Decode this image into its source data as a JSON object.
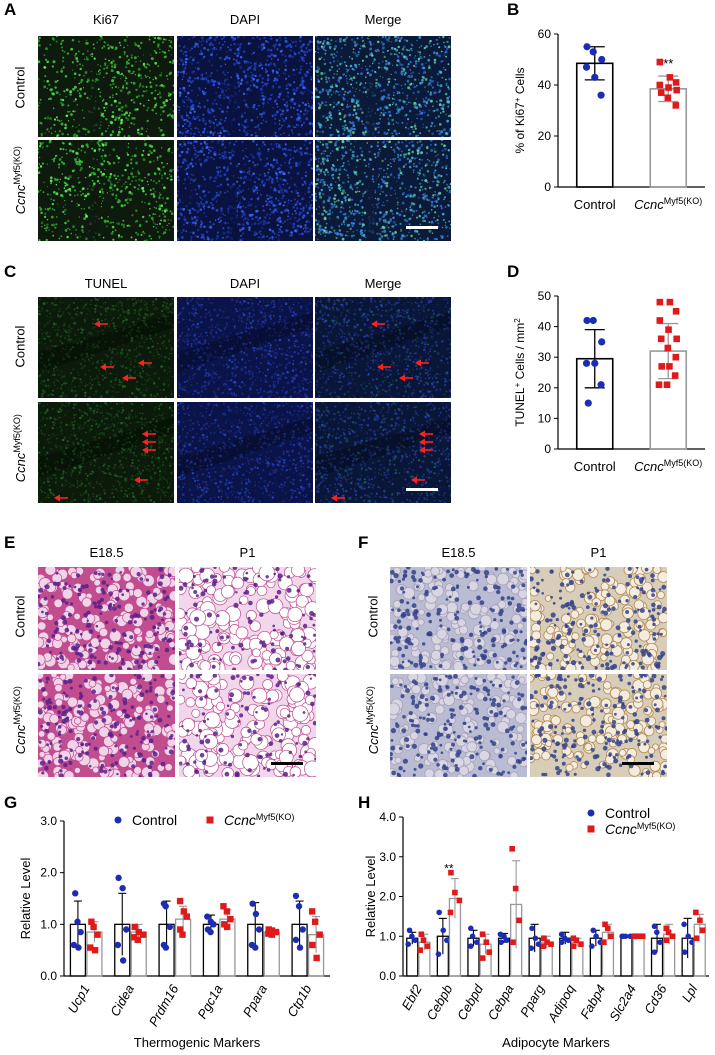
{
  "panels": {
    "A": {
      "label": "A",
      "columns": [
        "Ki67",
        "DAPI",
        "Merge"
      ],
      "rows": [
        "Control",
        "Ccnc"
      ],
      "row_sup": "Myf5(KO)"
    },
    "C": {
      "label": "C",
      "columns": [
        "TUNEL",
        "DAPI",
        "Merge"
      ],
      "rows": [
        "Control",
        "Ccnc"
      ],
      "row_sup": "Myf5(KO)"
    },
    "E": {
      "label": "E",
      "columns": [
        "E18.5",
        "P1"
      ],
      "rows": [
        "Control",
        "Ccnc"
      ],
      "row_sup": "Myf5(KO)"
    },
    "F": {
      "label": "F",
      "columns": [
        "E18.5",
        "P1"
      ],
      "rows": [
        "Control",
        "Ccnc"
      ],
      "row_sup": "Myf5(KO)"
    }
  },
  "colors": {
    "control": "#1c2db5",
    "ko": "#e01a1a",
    "ki67": "#39c437",
    "dapi": "#1a3cc8",
    "he": "#d24a9a",
    "ihc": "#c9a66b"
  },
  "chart_data": [
    {
      "id": "B",
      "label": "B",
      "type": "bar",
      "ylabel": "% of Ki67+ Cells",
      "ylabel_main": "% of Ki67",
      "ylabel_sup": "+",
      "ylabel_tail": " Cells",
      "ylim": [
        0,
        60
      ],
      "yticks": [
        0,
        20,
        40,
        60
      ],
      "categories": [
        "Control",
        "Ccnc"
      ],
      "category_sup": [
        "",
        "Myf5(KO)"
      ],
      "values": [
        48.5,
        38.5
      ],
      "errors": [
        6.5,
        5
      ],
      "points": [
        [
          55,
          53,
          50,
          47,
          43,
          36
        ],
        [
          49,
          43,
          41,
          40,
          39,
          38,
          37,
          35,
          32
        ]
      ],
      "annotations": [
        {
          "category": 1,
          "text": "**"
        }
      ]
    },
    {
      "id": "D",
      "label": "D",
      "type": "bar",
      "ylabel": "TUNEL+ Cells / mm2",
      "ylabel_main": "TUNEL",
      "ylabel_sup": "+",
      "ylabel_tail": " Cells / mm",
      "ylabel_tail_sup": "2",
      "ylim": [
        0,
        50
      ],
      "yticks": [
        0,
        10,
        20,
        30,
        40,
        50
      ],
      "categories": [
        "Control",
        "Ccnc"
      ],
      "category_sup": [
        "",
        "Myf5(KO)"
      ],
      "values": [
        29.5,
        32
      ],
      "errors": [
        9.5,
        9
      ],
      "points": [
        [
          42,
          42,
          35,
          28,
          28,
          21,
          15
        ],
        [
          48,
          48,
          45,
          42,
          39,
          36,
          36,
          33,
          30,
          27,
          27,
          24,
          21,
          21
        ]
      ],
      "annotations": []
    },
    {
      "id": "G",
      "label": "G",
      "type": "bar",
      "legend": [
        "Control",
        "Ccnc"
      ],
      "legend_sup": "Myf5(KO)",
      "ylabel": "Relative Level",
      "xlabel": "Thermogenic Markers",
      "ylim": [
        0,
        3
      ],
      "yticks": [
        0.0,
        1.0,
        2.0,
        3.0
      ],
      "ytick_labels": [
        "0.0",
        "1.0",
        "2.0",
        "3.0"
      ],
      "categories": [
        "Ucp1",
        "Cidea",
        "Prdm16",
        "Pgc1a",
        "Ppara",
        "Ctp1b"
      ],
      "series": [
        {
          "name": "Control",
          "values": [
            1.0,
            1.0,
            1.0,
            1.0,
            1.0,
            1.0
          ],
          "errors": [
            0.45,
            0.6,
            0.45,
            0.18,
            0.42,
            0.45
          ],
          "points": [
            [
              1.6,
              1.05,
              0.85,
              0.6,
              0.55
            ],
            [
              1.9,
              1.7,
              0.9,
              0.6,
              0.3
            ],
            [
              1.4,
              1.35,
              0.95,
              0.6,
              0.55
            ],
            [
              1.15,
              1.05,
              1.0,
              0.9,
              0.85
            ],
            [
              1.4,
              1.2,
              0.9,
              0.6,
              0.55
            ],
            [
              1.55,
              1.35,
              0.9,
              0.7,
              0.55
            ]
          ]
        },
        {
          "name": "Ccnc",
          "values": [
            0.85,
            0.85,
            1.1,
            1.1,
            0.85,
            0.8
          ],
          "errors": [
            0.2,
            0.15,
            0.25,
            0.18,
            0.05,
            0.35
          ],
          "points": [
            [
              1.05,
              0.95,
              0.8,
              0.55,
              0.5
            ],
            [
              0.95,
              0.85,
              0.8,
              0.75,
              0.7
            ],
            [
              1.45,
              1.25,
              1.15,
              0.9,
              0.8
            ],
            [
              1.35,
              1.25,
              1.1,
              1.0,
              0.95
            ],
            [
              0.9,
              0.88,
              0.85,
              0.82,
              0.8
            ],
            [
              1.25,
              1.05,
              0.8,
              0.6,
              0.35
            ]
          ]
        }
      ],
      "annotations": []
    },
    {
      "id": "H",
      "label": "H",
      "type": "bar",
      "legend": [
        "Control",
        "Ccnc"
      ],
      "legend_sup": "Myf5(KO)",
      "ylabel": "Relative Level",
      "xlabel": "Adipocyte Markers",
      "ylim": [
        0,
        4
      ],
      "yticks": [
        0.0,
        1.0,
        2.0,
        3.0,
        4.0
      ],
      "ytick_labels": [
        "0.0",
        "1.0",
        "2.0",
        "3.0",
        "4.0"
      ],
      "categories": [
        "Ebf2",
        "Cebpb",
        "Cebpd",
        "Cebpa",
        "Pparg",
        "Adipoq",
        "Fabp4",
        "Slc2a4",
        "Cd36",
        "Lpl"
      ],
      "series": [
        {
          "name": "Control",
          "values": [
            0.95,
            1.0,
            0.95,
            0.95,
            0.95,
            0.95,
            0.95,
            1.0,
            0.95,
            0.95
          ],
          "errors": [
            0.15,
            0.45,
            0.2,
            0.12,
            0.35,
            0.15,
            0.2,
            0.02,
            0.35,
            0.5
          ],
          "points": [
            [
              1.15,
              1.0,
              0.9,
              0.8
            ],
            [
              1.6,
              1.15,
              0.9,
              0.55
            ],
            [
              1.2,
              1.0,
              0.85,
              0.75
            ],
            [
              1.05,
              1.0,
              0.9,
              0.85
            ],
            [
              1.2,
              0.95,
              0.8,
              0.7
            ],
            [
              1.05,
              0.95,
              0.9,
              0.85
            ],
            [
              1.15,
              1.0,
              0.85,
              0.75
            ],
            [
              1.0,
              1.0,
              1.0,
              1.0
            ],
            [
              1.25,
              1.1,
              0.85,
              0.6
            ],
            [
              1.3,
              1.0,
              0.85,
              0.6
            ]
          ]
        },
        {
          "name": "Ccnc",
          "values": [
            0.85,
            1.95,
            0.8,
            1.8,
            0.85,
            0.85,
            1.1,
            1.0,
            1.05,
            1.3
          ],
          "errors": [
            0.2,
            0.5,
            0.25,
            1.1,
            0.15,
            0.1,
            0.2,
            0.02,
            0.25,
            0.25
          ],
          "points": [
            [
              1.05,
              0.9,
              0.75,
              0.65
            ],
            [
              2.6,
              2.1,
              1.9,
              1.6
            ],
            [
              1.05,
              0.85,
              0.6,
              0.45
            ],
            [
              3.2,
              2.2,
              1.4,
              0.85
            ],
            [
              0.95,
              0.85,
              0.8,
              0.75
            ],
            [
              0.95,
              0.9,
              0.8,
              0.75
            ],
            [
              1.3,
              1.2,
              1.0,
              0.85
            ],
            [
              1.0,
              1.0,
              1.0,
              1.0
            ],
            [
              1.2,
              1.1,
              1.0,
              0.9
            ],
            [
              1.6,
              1.4,
              1.15,
              0.95
            ]
          ]
        }
      ],
      "annotations": [
        {
          "category": 1,
          "text": "**"
        }
      ]
    }
  ]
}
